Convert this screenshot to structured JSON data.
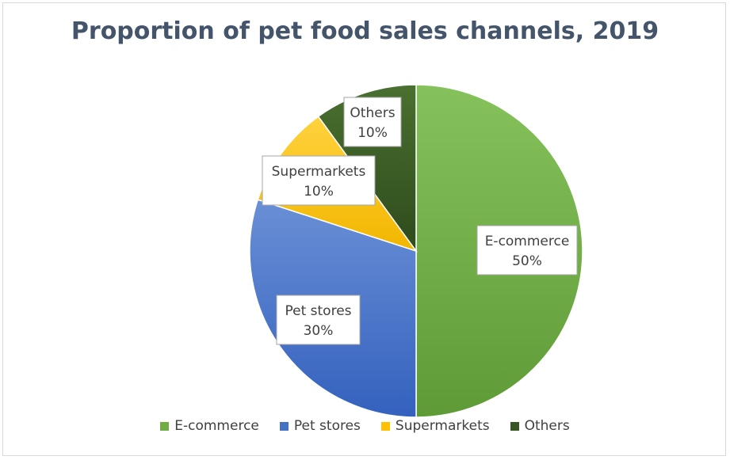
{
  "chart_data": {
    "type": "pie",
    "title": "Proportion of pet food sales channels, 2019",
    "slices": [
      {
        "name": "E-commerce",
        "value": 50,
        "label": "50%",
        "color": "#70ad47"
      },
      {
        "name": "Pet stores",
        "value": 30,
        "label": "30%",
        "color": "#4472c4"
      },
      {
        "name": "Supermarkets",
        "value": 10,
        "label": "10%",
        "color": "#ffc000"
      },
      {
        "name": "Others",
        "value": 10,
        "label": "10%",
        "color": "#375623"
      }
    ],
    "legend_placement": "bottom"
  }
}
